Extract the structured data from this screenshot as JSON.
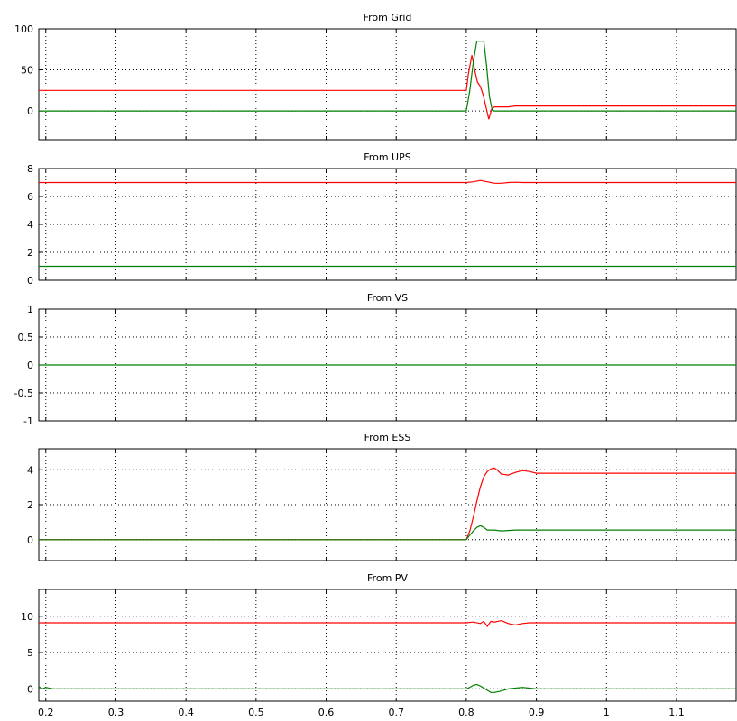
{
  "window": {},
  "colors": {
    "red": "#ff0000",
    "green": "#008000",
    "grid": "#000000",
    "frame": "#000000"
  },
  "chart_data": [
    {
      "type": "line",
      "title": "From Grid",
      "xlabel": "",
      "ylabel": "",
      "xlim": [
        0.19,
        1.185
      ],
      "ylim": [
        -35,
        100
      ],
      "yticks": [
        0,
        50,
        100
      ],
      "ytick_labels": [
        "0",
        "50",
        "100"
      ],
      "grid": true,
      "series": [
        {
          "color": "#ff0000",
          "x": [
            0.19,
            0.8,
            0.803,
            0.808,
            0.812,
            0.816,
            0.82,
            0.824,
            0.828,
            0.832,
            0.836,
            0.84,
            0.86,
            0.87,
            0.9,
            1.0,
            1.185
          ],
          "y": [
            25,
            25,
            45,
            68,
            50,
            35,
            30,
            20,
            5,
            -10,
            2,
            5,
            5,
            6,
            6,
            6,
            6
          ]
        },
        {
          "color": "#008000",
          "x": [
            0.19,
            0.8,
            0.805,
            0.81,
            0.815,
            0.82,
            0.825,
            0.829,
            0.833,
            0.837,
            0.84,
            1.185
          ],
          "y": [
            0,
            0,
            25,
            60,
            85,
            85,
            85,
            55,
            18,
            1,
            0,
            0
          ]
        }
      ]
    },
    {
      "type": "line",
      "title": "From UPS",
      "xlabel": "",
      "ylabel": "",
      "xlim": [
        0.19,
        1.185
      ],
      "ylim": [
        0,
        8
      ],
      "yticks": [
        0,
        2,
        4,
        6,
        8
      ],
      "ytick_labels": [
        "0",
        "2",
        "4",
        "6",
        "8"
      ],
      "grid": true,
      "series": [
        {
          "color": "#ff0000",
          "x": [
            0.19,
            0.8,
            0.81,
            0.82,
            0.83,
            0.84,
            0.85,
            0.86,
            0.87,
            0.88,
            1.185
          ],
          "y": [
            7.0,
            7.0,
            7.05,
            7.15,
            7.05,
            6.95,
            6.95,
            7.0,
            7.02,
            7.0,
            7.0
          ]
        },
        {
          "color": "#008000",
          "x": [
            0.19,
            1.185
          ],
          "y": [
            1.0,
            1.0
          ]
        }
      ]
    },
    {
      "type": "line",
      "title": "From VS",
      "xlabel": "",
      "ylabel": "",
      "xlim": [
        0.19,
        1.185
      ],
      "ylim": [
        -1,
        1
      ],
      "yticks": [
        -1,
        -0.5,
        0,
        0.5,
        1
      ],
      "ytick_labels": [
        "-1",
        "-0.5",
        "0",
        "0.5",
        "1"
      ],
      "grid": true,
      "series": [
        {
          "color": "#008000",
          "x": [
            0.19,
            1.185
          ],
          "y": [
            0,
            0
          ]
        }
      ]
    },
    {
      "type": "line",
      "title": "From ESS",
      "xlabel": "",
      "ylabel": "",
      "xlim": [
        0.19,
        1.185
      ],
      "ylim": [
        -1.2,
        5.2
      ],
      "yticks": [
        0,
        2,
        4
      ],
      "ytick_labels": [
        "0",
        "2",
        "4"
      ],
      "grid": true,
      "series": [
        {
          "color": "#ff0000",
          "x": [
            0.19,
            0.8,
            0.805,
            0.81,
            0.815,
            0.82,
            0.825,
            0.83,
            0.835,
            0.84,
            0.845,
            0.85,
            0.86,
            0.87,
            0.88,
            0.89,
            0.9,
            1.0,
            1.185
          ],
          "y": [
            0,
            0,
            0.5,
            1.3,
            2.2,
            3.0,
            3.6,
            3.9,
            4.05,
            4.1,
            3.95,
            3.75,
            3.7,
            3.85,
            3.95,
            3.9,
            3.8,
            3.8,
            3.8
          ]
        },
        {
          "color": "#008000",
          "x": [
            0.19,
            0.8,
            0.805,
            0.81,
            0.815,
            0.82,
            0.825,
            0.83,
            0.84,
            0.85,
            0.87,
            0.89,
            1.185
          ],
          "y": [
            0,
            0,
            0.25,
            0.5,
            0.7,
            0.8,
            0.7,
            0.55,
            0.55,
            0.5,
            0.55,
            0.55,
            0.55
          ]
        }
      ]
    },
    {
      "type": "line",
      "title": "From PV",
      "xlabel": "",
      "ylabel": "",
      "xlim": [
        0.19,
        1.185
      ],
      "ylim": [
        -1.7,
        13.7
      ],
      "yticks": [
        0,
        5,
        10
      ],
      "ytick_labels": [
        "0",
        "5",
        "10"
      ],
      "xticks": [
        0.2,
        0.3,
        0.4,
        0.5,
        0.6,
        0.7,
        0.8,
        0.9,
        1.0,
        1.1
      ],
      "xtick_labels": [
        "0.2",
        "0.3",
        "0.4",
        "0.5",
        "0.6",
        "0.7",
        "0.8",
        "0.9",
        "1",
        "1.1"
      ],
      "grid": true,
      "series": [
        {
          "color": "#ff0000",
          "x": [
            0.19,
            0.8,
            0.81,
            0.82,
            0.825,
            0.83,
            0.835,
            0.84,
            0.85,
            0.86,
            0.87,
            0.88,
            0.89,
            0.9,
            1.185
          ],
          "y": [
            9.1,
            9.1,
            9.2,
            9.0,
            9.3,
            8.6,
            9.3,
            9.2,
            9.4,
            9.0,
            8.8,
            9.0,
            9.1,
            9.1,
            9.1
          ]
        },
        {
          "color": "#008000",
          "x": [
            0.19,
            0.195,
            0.2,
            0.21,
            0.8,
            0.805,
            0.81,
            0.815,
            0.82,
            0.825,
            0.83,
            0.835,
            0.84,
            0.85,
            0.86,
            0.87,
            0.88,
            0.89,
            0.9,
            1.185
          ],
          "y": [
            0.3,
            0.0,
            0.2,
            0.0,
            0.0,
            0.2,
            0.5,
            0.6,
            0.4,
            0.1,
            -0.2,
            -0.5,
            -0.5,
            -0.3,
            0.0,
            0.1,
            0.2,
            0.1,
            0.0,
            0.0
          ]
        }
      ]
    }
  ]
}
